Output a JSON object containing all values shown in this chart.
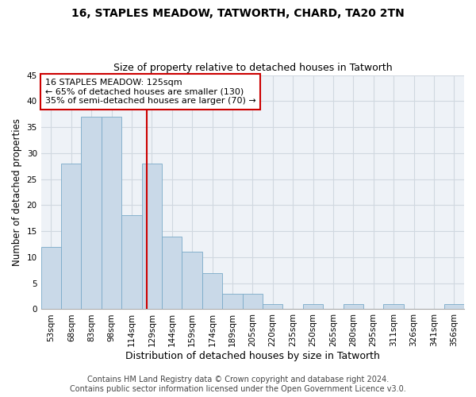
{
  "title1": "16, STAPLES MEADOW, TATWORTH, CHARD, TA20 2TN",
  "title2": "Size of property relative to detached houses in Tatworth",
  "xlabel": "Distribution of detached houses by size in Tatworth",
  "ylabel": "Number of detached properties",
  "bar_labels": [
    "53sqm",
    "68sqm",
    "83sqm",
    "98sqm",
    "114sqm",
    "129sqm",
    "144sqm",
    "159sqm",
    "174sqm",
    "189sqm",
    "205sqm",
    "220sqm",
    "235sqm",
    "250sqm",
    "265sqm",
    "280sqm",
    "295sqm",
    "311sqm",
    "326sqm",
    "341sqm",
    "356sqm"
  ],
  "bar_values": [
    12,
    28,
    37,
    37,
    18,
    28,
    14,
    11,
    7,
    3,
    3,
    1,
    0,
    1,
    0,
    1,
    0,
    1,
    0,
    0,
    1
  ],
  "bar_color": "#c9d9e8",
  "bar_edge_color": "#7aaac8",
  "vline_x": 4.75,
  "vline_color": "#cc0000",
  "annotation_line1": "16 STAPLES MEADOW: 125sqm",
  "annotation_line2": "← 65% of detached houses are smaller (130)",
  "annotation_line3": "35% of semi-detached houses are larger (70) →",
  "annotation_box_color": "#ffffff",
  "annotation_box_edge": "#cc0000",
  "ylim": [
    0,
    45
  ],
  "yticks": [
    0,
    5,
    10,
    15,
    20,
    25,
    30,
    35,
    40,
    45
  ],
  "grid_color": "#d0d8e0",
  "background_color": "#eef2f7",
  "footer1": "Contains HM Land Registry data © Crown copyright and database right 2024.",
  "footer2": "Contains public sector information licensed under the Open Government Licence v3.0.",
  "title1_fontsize": 10,
  "title2_fontsize": 9,
  "xlabel_fontsize": 9,
  "ylabel_fontsize": 8.5,
  "tick_fontsize": 7.5,
  "annot_fontsize": 8,
  "footer_fontsize": 7
}
